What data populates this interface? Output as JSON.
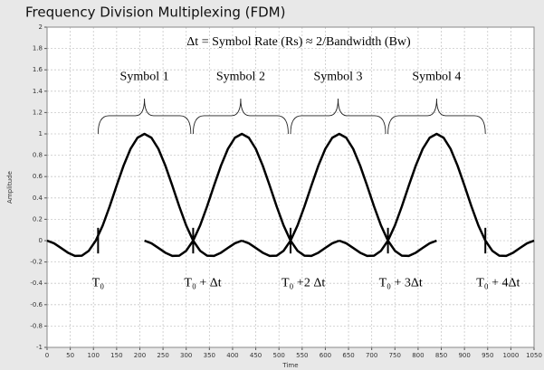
{
  "chart_data": {
    "type": "line",
    "title": "Frequency Division Multiplexing (FDM)",
    "xlabel": "Time",
    "ylabel": "Amplitude",
    "equation": "Δt = Symbol Rate (Rs) ≈ 2/Bandwidth (Bw)",
    "xlim": [
      0,
      1050
    ],
    "ylim": [
      -1,
      2
    ],
    "xticks": [
      0,
      50,
      100,
      150,
      200,
      250,
      300,
      350,
      400,
      450,
      500,
      550,
      600,
      650,
      700,
      750,
      800,
      850,
      900,
      950,
      1000,
      1050
    ],
    "yticks": [
      -1,
      -0.8,
      -0.6,
      -0.4,
      -0.2,
      0,
      0.2,
      0.4,
      0.6,
      0.8,
      1,
      1.2,
      1.4,
      1.6,
      1.8,
      2
    ],
    "grid": true,
    "series": [
      {
        "color": "#000000",
        "x": [
          0,
          15,
          30,
          45,
          60,
          75,
          90,
          105,
          120,
          135,
          150,
          165,
          180,
          195,
          210,
          225,
          240,
          255,
          270,
          285,
          300,
          315,
          330,
          345,
          360,
          375,
          390,
          405,
          420
        ],
        "values": [
          0,
          -0.025,
          -0.068,
          -0.113,
          -0.143,
          -0.141,
          -0.095,
          0,
          0.142,
          0.321,
          0.516,
          0.703,
          0.86,
          0.964,
          1,
          0.964,
          0.86,
          0.703,
          0.516,
          0.321,
          0.142,
          0,
          -0.095,
          -0.141,
          -0.143,
          -0.113,
          -0.068,
          -0.025,
          0
        ]
      },
      {
        "color": "#000000",
        "x": [
          210,
          225,
          240,
          255,
          270,
          285,
          300,
          315,
          330,
          345,
          360,
          375,
          390,
          405,
          420,
          435,
          450,
          465,
          480,
          495,
          510,
          525,
          540,
          555,
          570,
          585,
          600,
          615,
          630
        ],
        "values": [
          0,
          -0.025,
          -0.068,
          -0.113,
          -0.143,
          -0.141,
          -0.095,
          0,
          0.142,
          0.321,
          0.516,
          0.703,
          0.86,
          0.964,
          1,
          0.964,
          0.86,
          0.703,
          0.516,
          0.321,
          0.142,
          0,
          -0.095,
          -0.141,
          -0.143,
          -0.113,
          -0.068,
          -0.025,
          0
        ]
      },
      {
        "color": "#000000",
        "x": [
          420,
          435,
          450,
          465,
          480,
          495,
          510,
          525,
          540,
          555,
          570,
          585,
          600,
          615,
          630,
          645,
          660,
          675,
          690,
          705,
          720,
          735,
          750,
          765,
          780,
          795,
          810,
          825,
          840
        ],
        "values": [
          0,
          -0.025,
          -0.068,
          -0.113,
          -0.143,
          -0.141,
          -0.095,
          0,
          0.142,
          0.321,
          0.516,
          0.703,
          0.86,
          0.964,
          1,
          0.964,
          0.86,
          0.703,
          0.516,
          0.321,
          0.142,
          0,
          -0.095,
          -0.141,
          -0.143,
          -0.113,
          -0.068,
          -0.025,
          0
        ]
      },
      {
        "color": "#000000",
        "x": [
          630,
          645,
          660,
          675,
          690,
          705,
          720,
          735,
          750,
          765,
          780,
          795,
          810,
          825,
          840,
          855,
          870,
          885,
          900,
          915,
          930,
          945,
          960,
          975,
          990,
          1005,
          1020,
          1035,
          1050
        ],
        "values": [
          0,
          -0.025,
          -0.068,
          -0.113,
          -0.143,
          -0.141,
          -0.095,
          0,
          0.142,
          0.321,
          0.516,
          0.703,
          0.86,
          0.964,
          1,
          0.964,
          0.86,
          0.703,
          0.516,
          0.321,
          0.142,
          0,
          -0.095,
          -0.141,
          -0.143,
          -0.113,
          -0.068,
          -0.025,
          0
        ]
      }
    ],
    "symbols": [
      {
        "label": "Symbol 1",
        "span": [
          110,
          310
        ]
      },
      {
        "label": "Symbol 2",
        "span": [
          315,
          520
        ]
      },
      {
        "label": "Symbol 3",
        "span": [
          525,
          730
        ]
      },
      {
        "label": "Symbol 4",
        "span": [
          735,
          945
        ]
      }
    ],
    "markers": [
      {
        "x": 110,
        "label": "T₀"
      },
      {
        "x": 315,
        "label": "T₀ + Δt"
      },
      {
        "x": 525,
        "label": "T₀ +2 Δt"
      },
      {
        "x": 735,
        "label": "T₀ + 3Δt"
      },
      {
        "x": 945,
        "label": "T₀ + 4Δt"
      }
    ]
  }
}
